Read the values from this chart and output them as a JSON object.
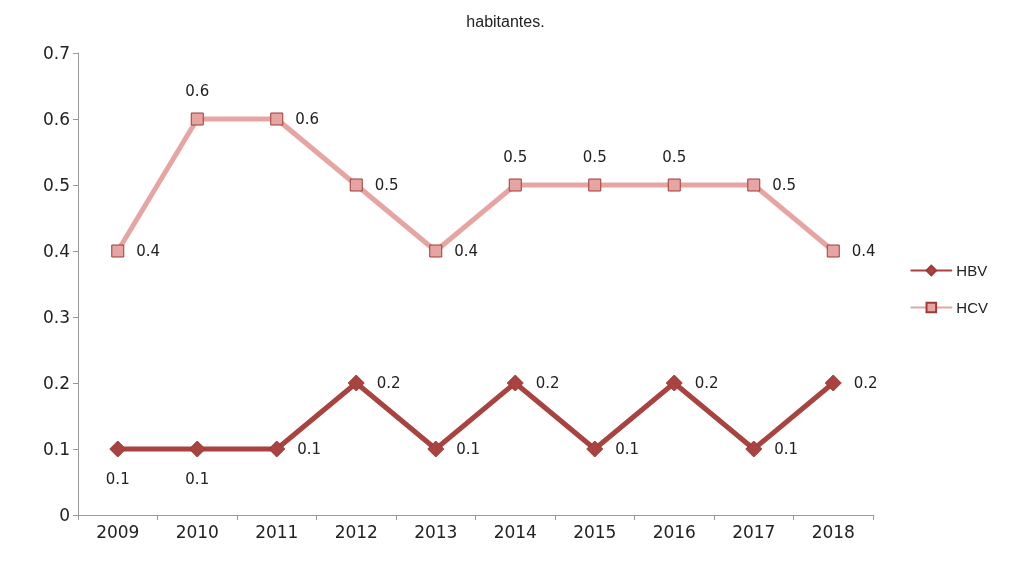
{
  "chart_data": {
    "type": "line",
    "title": "habitantes.",
    "categories": [
      "2009",
      "2010",
      "2011",
      "2012",
      "2013",
      "2014",
      "2015",
      "2016",
      "2017",
      "2018"
    ],
    "series": [
      {
        "name": "HBV",
        "color": "#a8433f",
        "marker": "diamond",
        "values": [
          0.1,
          0.1,
          0.1,
          0.2,
          0.1,
          0.2,
          0.1,
          0.2,
          0.1,
          0.2
        ]
      },
      {
        "name": "HCV",
        "color": "#e6a5a3",
        "marker": "square",
        "values": [
          0.4,
          0.6,
          0.6,
          0.5,
          0.4,
          0.5,
          0.5,
          0.5,
          0.5,
          0.4
        ]
      }
    ],
    "ylim": [
      0,
      0.7
    ],
    "yticks": [
      0,
      0.1,
      0.2,
      0.3,
      0.4,
      0.5,
      0.6,
      0.7
    ],
    "grid": false,
    "legend": "right",
    "data_labels": true,
    "line_style": "solid"
  }
}
